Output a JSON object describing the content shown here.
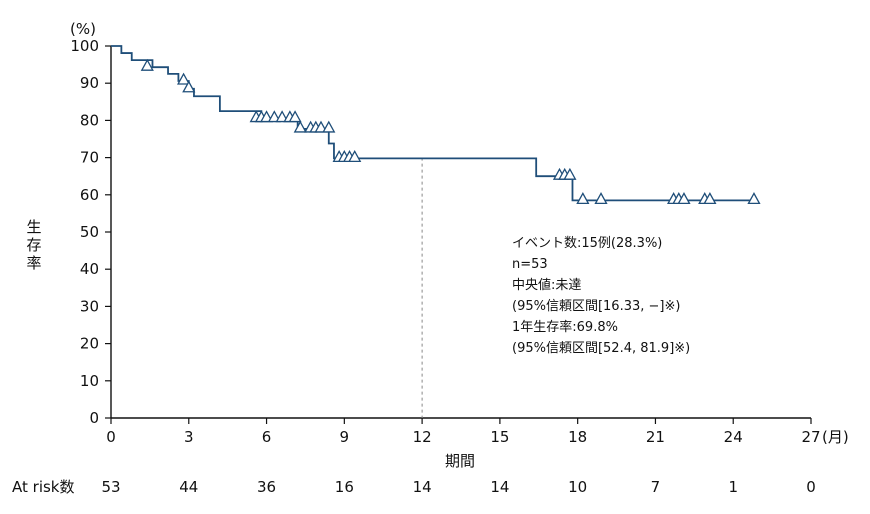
{
  "chart_data": {
    "type": "line",
    "xlabel": "期間",
    "ylabel": "生存率",
    "y_unit": "(%)",
    "x_unit": "(月)",
    "xlim": [
      0,
      27
    ],
    "ylim": [
      0,
      100
    ],
    "x_ticks": [
      0,
      3,
      6,
      9,
      12,
      15,
      18,
      21,
      24,
      27
    ],
    "y_ticks": [
      0,
      10,
      20,
      30,
      40,
      50,
      60,
      70,
      80,
      90,
      100
    ],
    "grid": false,
    "reference_line_x": 12,
    "series": [
      {
        "color": "#1f4e79",
        "steps": [
          [
            0,
            100
          ],
          [
            0.4,
            98.1
          ],
          [
            0.8,
            98.1
          ],
          [
            0.8,
            96.2
          ],
          [
            1.6,
            94.3
          ],
          [
            2.2,
            92.5
          ],
          [
            2.6,
            90.6
          ],
          [
            3.0,
            88.5
          ],
          [
            3.2,
            86.5
          ],
          [
            4.2,
            86.5
          ],
          [
            4.2,
            82.5
          ],
          [
            5.8,
            82.5
          ],
          [
            5.8,
            80.5
          ],
          [
            7.2,
            80.5
          ],
          [
            7.2,
            77.7
          ],
          [
            8.4,
            77.7
          ],
          [
            8.4,
            73.8
          ],
          [
            8.6,
            73.8
          ],
          [
            8.6,
            69.8
          ],
          [
            16.4,
            69.8
          ],
          [
            16.4,
            65.0
          ],
          [
            17.8,
            65.0
          ],
          [
            17.8,
            58.5
          ],
          [
            24.9,
            58.5
          ]
        ],
        "censored": [
          [
            1.4,
            94.3
          ],
          [
            2.8,
            90.6
          ],
          [
            3.0,
            88.5
          ],
          [
            5.6,
            80.5
          ],
          [
            5.8,
            80.5
          ],
          [
            6.0,
            80.5
          ],
          [
            6.3,
            80.5
          ],
          [
            6.6,
            80.5
          ],
          [
            6.9,
            80.5
          ],
          [
            7.1,
            80.5
          ],
          [
            7.3,
            77.7
          ],
          [
            7.7,
            77.7
          ],
          [
            7.9,
            77.7
          ],
          [
            8.1,
            77.7
          ],
          [
            8.4,
            77.7
          ],
          [
            8.8,
            69.8
          ],
          [
            9.0,
            69.8
          ],
          [
            9.2,
            69.8
          ],
          [
            9.4,
            69.8
          ],
          [
            17.3,
            65.0
          ],
          [
            17.5,
            65.0
          ],
          [
            17.7,
            65.0
          ],
          [
            18.2,
            58.5
          ],
          [
            18.9,
            58.5
          ],
          [
            21.7,
            58.5
          ],
          [
            21.9,
            58.5
          ],
          [
            22.1,
            58.5
          ],
          [
            22.9,
            58.5
          ],
          [
            23.1,
            58.5
          ],
          [
            24.8,
            58.5
          ]
        ]
      }
    ],
    "annotations": [
      "イベント数:15例(28.3%)",
      "n=53",
      "中央値:未達",
      "(95%信頼区間[16.33, −]※)",
      "1年生存率:69.8%",
      "(95%信頼区間[52.4, 81.9]※)"
    ],
    "at_risk": {
      "label": "At risk数",
      "times": [
        0,
        3,
        6,
        9,
        12,
        15,
        18,
        21,
        24,
        27
      ],
      "values": [
        53,
        44,
        36,
        16,
        14,
        14,
        10,
        7,
        1,
        0
      ]
    }
  }
}
